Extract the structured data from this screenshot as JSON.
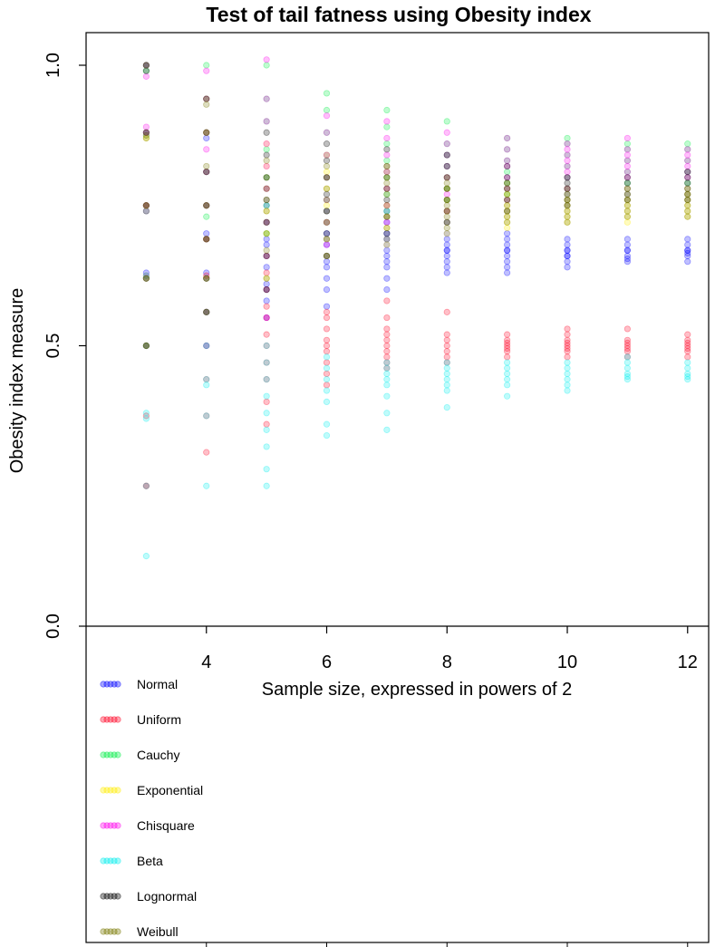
{
  "chart_data": {
    "type": "scatter",
    "title": "Test of tail fatness using Obesity index",
    "xlabel": "Sample size, expressed in powers of 2",
    "ylabel": "Obesity index measure",
    "xlim": [
      2.0,
      12.35
    ],
    "ylim": [
      -0.52,
      1.06
    ],
    "x_ticks": [
      4,
      6,
      8,
      10,
      12
    ],
    "y_ticks": [
      0.0,
      0.5,
      1.0
    ],
    "x_tick_labels": [
      "4",
      "6",
      "8",
      "10",
      "12"
    ],
    "y_tick_labels": [
      "0.0",
      "0.5",
      "1.0"
    ],
    "legend_position": "bottom-left",
    "x": [
      3,
      4,
      5,
      6,
      7,
      8,
      9,
      10,
      11,
      12
    ],
    "series": [
      {
        "name": "Normal",
        "color": "#0000ff",
        "values": [
          [
            0.62,
            0.75,
            0.88,
            0.5,
            0.63,
            1.0,
            0.74
          ],
          [
            0.5,
            0.56,
            0.63,
            0.69,
            0.75,
            0.81,
            0.87,
            0.62,
            0.7
          ],
          [
            0.55,
            0.58,
            0.61,
            0.64,
            0.66,
            0.69,
            0.72,
            0.75,
            0.78,
            0.6,
            0.68
          ],
          [
            0.57,
            0.6,
            0.62,
            0.64,
            0.66,
            0.68,
            0.7,
            0.72,
            0.74,
            0.65,
            0.69
          ],
          [
            0.6,
            0.62,
            0.64,
            0.65,
            0.67,
            0.68,
            0.7,
            0.72,
            0.74,
            0.66,
            0.69
          ],
          [
            0.63,
            0.64,
            0.65,
            0.66,
            0.67,
            0.68,
            0.69,
            0.7,
            0.72,
            0.67
          ],
          [
            0.63,
            0.64,
            0.65,
            0.66,
            0.67,
            0.68,
            0.69,
            0.7,
            0.67
          ],
          [
            0.64,
            0.65,
            0.66,
            0.67,
            0.68,
            0.69,
            0.66,
            0.67
          ],
          [
            0.65,
            0.655,
            0.66,
            0.67,
            0.68,
            0.69,
            0.67
          ],
          [
            0.65,
            0.66,
            0.665,
            0.67,
            0.68,
            0.69,
            0.67
          ]
        ]
      },
      {
        "name": "Uniform",
        "color": "#ff0022",
        "values": [
          [
            0.25,
            0.375,
            0.5,
            0.625,
            0.75,
            0.875,
            0.25
          ],
          [
            0.31,
            0.375,
            0.44,
            0.5,
            0.56,
            0.625,
            0.69
          ],
          [
            0.36,
            0.4,
            0.44,
            0.47,
            0.5,
            0.52,
            0.55,
            0.57,
            0.6,
            0.63
          ],
          [
            0.43,
            0.45,
            0.47,
            0.49,
            0.5,
            0.51,
            0.53,
            0.55,
            0.56
          ],
          [
            0.46,
            0.47,
            0.48,
            0.49,
            0.5,
            0.51,
            0.52,
            0.53,
            0.55,
            0.58
          ],
          [
            0.47,
            0.48,
            0.49,
            0.5,
            0.51,
            0.52,
            0.56
          ],
          [
            0.48,
            0.49,
            0.495,
            0.5,
            0.505,
            0.51,
            0.52
          ],
          [
            0.48,
            0.49,
            0.495,
            0.5,
            0.505,
            0.51,
            0.52,
            0.53
          ],
          [
            0.48,
            0.49,
            0.495,
            0.5,
            0.505,
            0.51,
            0.53
          ],
          [
            0.48,
            0.49,
            0.495,
            0.5,
            0.505,
            0.51,
            0.52
          ]
        ]
      },
      {
        "name": "Cauchy",
        "color": "#00ee44",
        "values": [
          [
            0.75,
            0.875,
            1.0,
            0.99
          ],
          [
            0.75,
            0.81,
            0.88,
            0.94,
            1.0,
            0.73,
            0.69
          ],
          [
            0.7,
            0.75,
            0.8,
            0.85,
            0.9,
            0.94,
            1.0
          ],
          [
            0.72,
            0.76,
            0.8,
            0.84,
            0.88,
            0.92,
            0.95
          ],
          [
            0.74,
            0.77,
            0.8,
            0.83,
            0.86,
            0.89,
            0.92
          ],
          [
            0.76,
            0.78,
            0.8,
            0.82,
            0.84,
            0.86,
            0.9
          ],
          [
            0.77,
            0.79,
            0.81,
            0.83,
            0.85,
            0.87
          ],
          [
            0.78,
            0.8,
            0.82,
            0.84,
            0.86,
            0.87
          ],
          [
            0.79,
            0.81,
            0.83,
            0.85,
            0.86
          ],
          [
            0.79,
            0.81,
            0.83,
            0.85,
            0.86
          ]
        ]
      },
      {
        "name": "Exponential",
        "color": "#ffee00",
        "values": [
          [
            0.5,
            0.62,
            0.75,
            0.87
          ],
          [
            0.56,
            0.62,
            0.69,
            0.75,
            0.81,
            0.88,
            0.94
          ],
          [
            0.62,
            0.66,
            0.7,
            0.74,
            0.78,
            0.82,
            0.86
          ],
          [
            0.66,
            0.69,
            0.72,
            0.75,
            0.78,
            0.81,
            0.84
          ],
          [
            0.68,
            0.71,
            0.73,
            0.75,
            0.78,
            0.8,
            0.82
          ],
          [
            0.7,
            0.72,
            0.74,
            0.76,
            0.78,
            0.8
          ],
          [
            0.71,
            0.72,
            0.73,
            0.74,
            0.75,
            0.77,
            0.79
          ],
          [
            0.72,
            0.73,
            0.74,
            0.75,
            0.76,
            0.78
          ],
          [
            0.72,
            0.73,
            0.74,
            0.75,
            0.76,
            0.78
          ],
          [
            0.73,
            0.74,
            0.75,
            0.76,
            0.77,
            0.78
          ]
        ]
      },
      {
        "name": "Chisquare",
        "color": "#ff00ee",
        "values": [
          [
            0.75,
            0.88,
            0.89,
            1.0,
            0.98
          ],
          [
            0.69,
            0.75,
            0.81,
            0.85,
            0.88,
            0.94,
            0.99,
            0.56
          ],
          [
            0.66,
            0.72,
            0.78,
            0.82,
            0.86,
            0.9,
            0.94,
            1.01,
            0.55
          ],
          [
            0.68,
            0.72,
            0.76,
            0.8,
            0.84,
            0.88,
            0.91
          ],
          [
            0.72,
            0.75,
            0.78,
            0.81,
            0.84,
            0.87,
            0.9
          ],
          [
            0.74,
            0.77,
            0.8,
            0.82,
            0.84,
            0.86,
            0.88
          ],
          [
            0.76,
            0.78,
            0.8,
            0.82,
            0.83,
            0.85,
            0.87
          ],
          [
            0.78,
            0.8,
            0.81,
            0.82,
            0.83,
            0.84,
            0.85,
            0.86
          ],
          [
            0.8,
            0.81,
            0.82,
            0.83,
            0.84,
            0.85,
            0.87
          ],
          [
            0.8,
            0.81,
            0.82,
            0.83,
            0.84,
            0.85
          ]
        ]
      },
      {
        "name": "Beta",
        "color": "#00eeee",
        "values": [
          [
            0.125,
            0.25,
            0.37,
            0.5,
            0.625,
            0.38
          ],
          [
            0.25,
            0.375,
            0.44,
            0.5,
            0.56,
            0.43
          ],
          [
            0.25,
            0.28,
            0.32,
            0.35,
            0.38,
            0.41,
            0.44,
            0.47,
            0.5
          ],
          [
            0.34,
            0.36,
            0.4,
            0.42,
            0.44,
            0.46,
            0.48
          ],
          [
            0.35,
            0.38,
            0.41,
            0.43,
            0.44,
            0.45,
            0.46,
            0.47
          ],
          [
            0.39,
            0.42,
            0.43,
            0.44,
            0.45,
            0.46,
            0.47
          ],
          [
            0.41,
            0.43,
            0.44,
            0.45,
            0.46,
            0.47
          ],
          [
            0.42,
            0.43,
            0.44,
            0.45,
            0.46,
            0.47
          ],
          [
            0.44,
            0.445,
            0.45,
            0.46,
            0.47,
            0.48
          ],
          [
            0.44,
            0.445,
            0.45,
            0.46,
            0.47
          ]
        ]
      },
      {
        "name": "Lognormal",
        "color": "#000000",
        "values": [
          [
            0.5,
            0.62,
            0.75,
            0.88,
            1.0,
            0.99
          ],
          [
            0.56,
            0.62,
            0.69,
            0.75,
            0.81,
            0.88,
            0.94
          ],
          [
            0.6,
            0.66,
            0.72,
            0.76,
            0.8,
            0.84,
            0.88
          ],
          [
            0.66,
            0.7,
            0.74,
            0.77,
            0.8,
            0.83,
            0.86
          ],
          [
            0.7,
            0.73,
            0.76,
            0.78,
            0.8,
            0.82,
            0.85
          ],
          [
            0.72,
            0.74,
            0.76,
            0.78,
            0.8,
            0.82,
            0.84
          ],
          [
            0.74,
            0.76,
            0.78,
            0.79,
            0.8,
            0.82
          ],
          [
            0.75,
            0.76,
            0.77,
            0.78,
            0.79,
            0.8
          ],
          [
            0.76,
            0.77,
            0.78,
            0.79,
            0.8
          ],
          [
            0.76,
            0.77,
            0.78,
            0.79,
            0.8,
            0.81
          ]
        ]
      },
      {
        "name": "Weibull",
        "color": "#777700",
        "values": [
          [
            0.5,
            0.62,
            0.74,
            0.75,
            0.87,
            0.88,
            1.0
          ],
          [
            0.56,
            0.62,
            0.69,
            0.75,
            0.82,
            0.88,
            0.93
          ],
          [
            0.62,
            0.67,
            0.7,
            0.72,
            0.74,
            0.76,
            0.78,
            0.8,
            0.83
          ],
          [
            0.66,
            0.69,
            0.72,
            0.74,
            0.76,
            0.78,
            0.8,
            0.82
          ],
          [
            0.69,
            0.71,
            0.73,
            0.75,
            0.77,
            0.79,
            0.81
          ],
          [
            0.71,
            0.73,
            0.74,
            0.75,
            0.76,
            0.78,
            0.79
          ],
          [
            0.72,
            0.73,
            0.74,
            0.75,
            0.76,
            0.77,
            0.78
          ],
          [
            0.72,
            0.73,
            0.74,
            0.75,
            0.76,
            0.77
          ],
          [
            0.73,
            0.74,
            0.75,
            0.76,
            0.77
          ],
          [
            0.73,
            0.74,
            0.75,
            0.76,
            0.77
          ]
        ]
      }
    ]
  }
}
